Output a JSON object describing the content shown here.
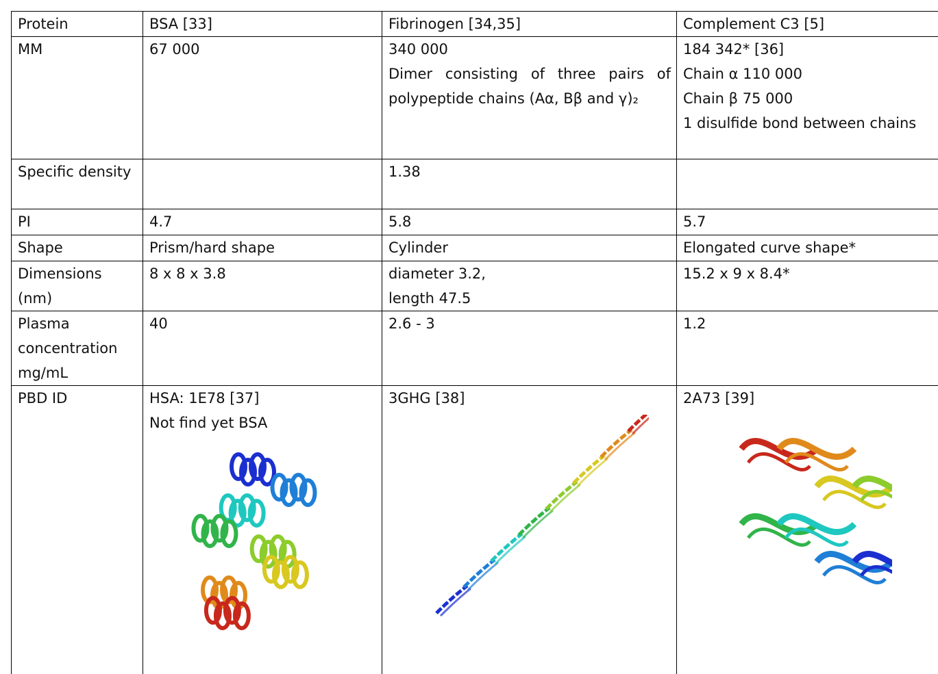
{
  "table": {
    "rows": [
      [
        [
          "Protein"
        ],
        [
          "BSA [33]"
        ],
        [
          "Fibrinogen [34,35]"
        ],
        [
          "Complement C3 [5]"
        ]
      ],
      [
        [
          "MM"
        ],
        [
          "67 000"
        ],
        [
          "340 000",
          "Dimer consisting of three pairs of polypeptide chains (Aα, Bβ and γ)₂"
        ],
        [
          "184 342* [36]",
          "Chain α 110 000",
          "Chain β 75 000",
          "1 disulfide bond between chains"
        ]
      ],
      [
        [
          "Specific density"
        ],
        [],
        [
          "1.38"
        ],
        []
      ],
      [
        [
          "PI"
        ],
        [
          "4.7"
        ],
        [
          "5.8"
        ],
        [
          "5.7"
        ]
      ],
      [
        [
          "Shape"
        ],
        [
          "Prism/hard shape"
        ],
        [
          "Cylinder"
        ],
        [
          "Elongated curve shape*"
        ]
      ],
      [
        [
          "Dimensions (nm)"
        ],
        [
          "8 x 8 x 3.8"
        ],
        [
          "diameter 3.2,",
          "length 47.5"
        ],
        [
          "15.2 x 9 x 8.4*"
        ]
      ],
      [
        [
          "Plasma concentration mg/mL"
        ],
        [
          "40"
        ],
        [
          "2.6 - 3"
        ],
        [
          "1.2"
        ]
      ],
      [
        [
          "PBD ID"
        ],
        [
          "HSA: 1E78 [37]",
          "Not find yet BSA"
        ],
        [
          "3GHG [38]"
        ],
        [
          "2A73 [39]"
        ]
      ]
    ]
  }
}
